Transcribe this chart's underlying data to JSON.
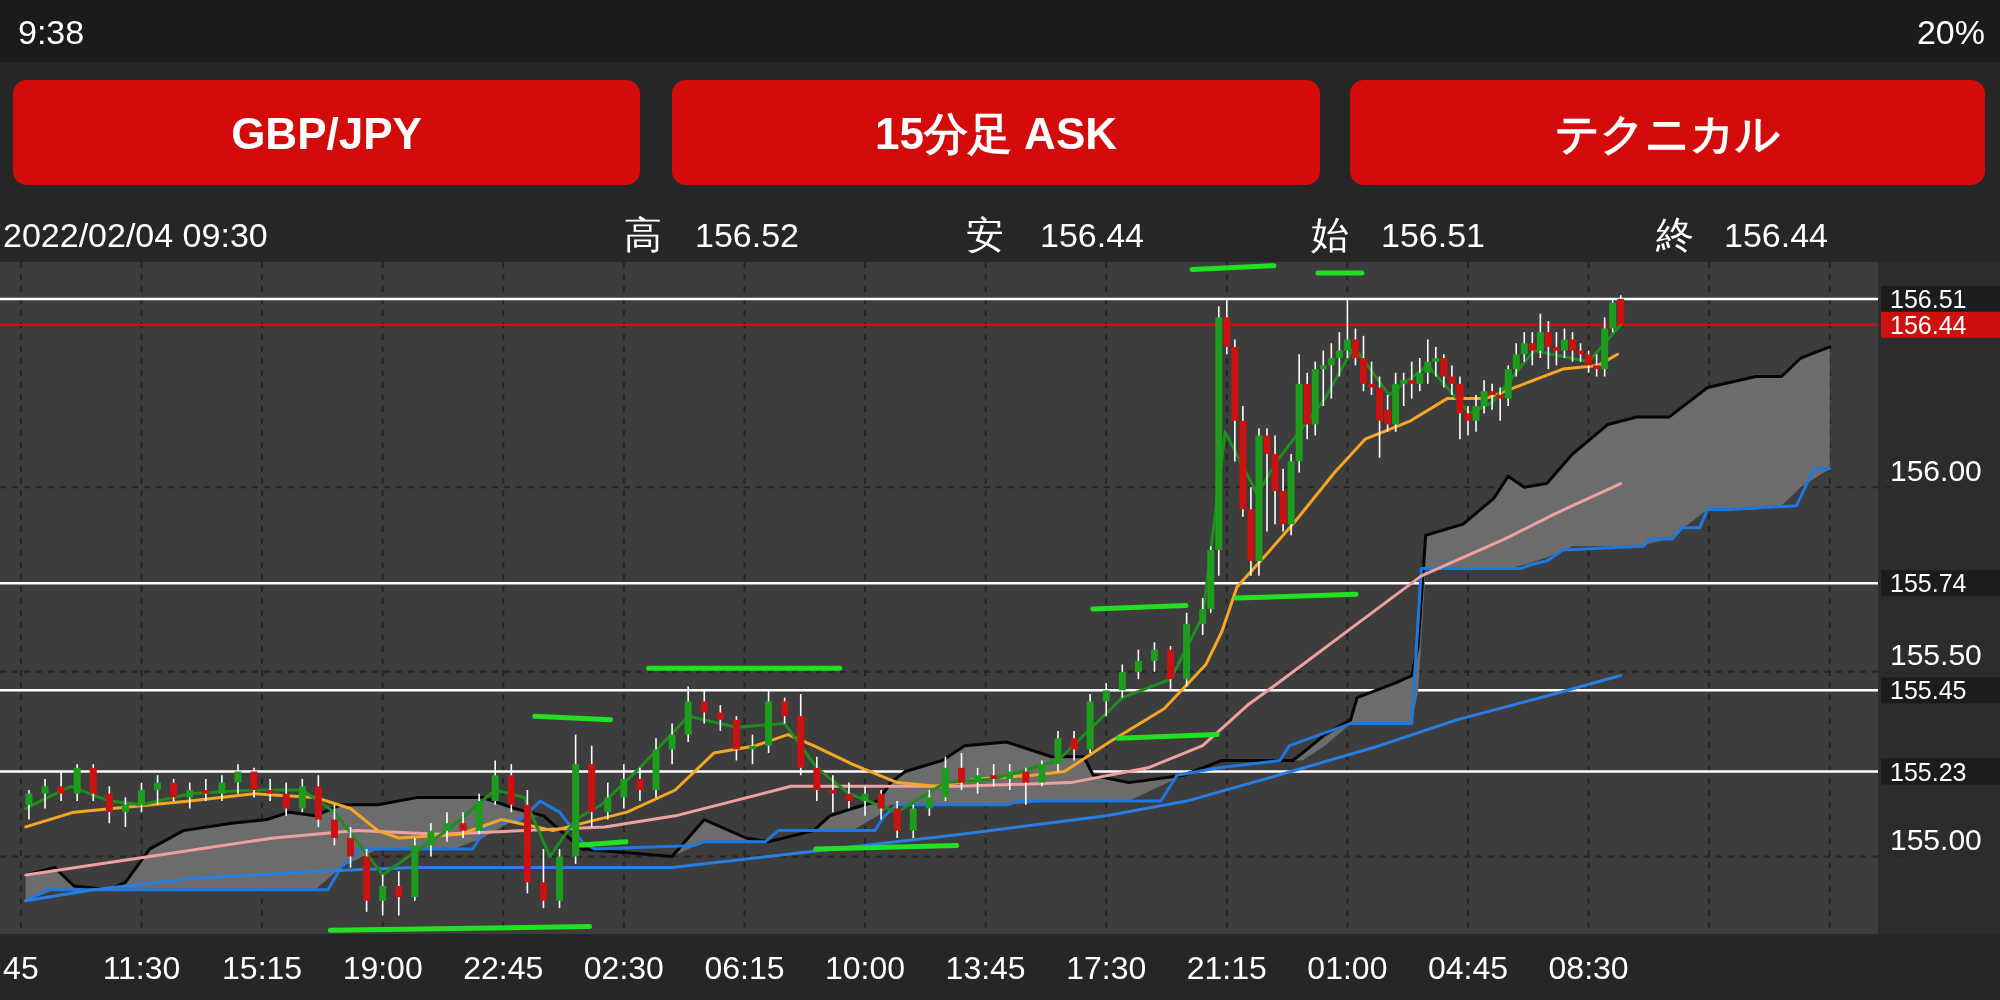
{
  "chart_data": {
    "type": "candlestick",
    "title": "GBP/JPY",
    "subtitle": "15分足 ASK",
    "annotations": [
      "9:38",
      "20%",
      "2022/02/04 09:30",
      "高",
      "156.52",
      "安",
      "156.44",
      "始",
      "156.51",
      "終",
      "156.44",
      "テクニカル"
    ],
    "xlim": [
      "2022-02-02T07:06",
      "2022-02-04T17:30"
    ],
    "ylim": [
      154.79,
      156.61
    ],
    "xticks": [
      {
        "value": "2022-02-02T07:45",
        "label": "45"
      },
      {
        "value": "2022-02-02T11:30",
        "label": "11:30"
      },
      {
        "value": "2022-02-02T15:15",
        "label": "15:15"
      },
      {
        "value": "2022-02-02T19:00",
        "label": "19:00"
      },
      {
        "value": "2022-02-02T22:45",
        "label": "22:45"
      },
      {
        "value": "2022-02-03T02:30",
        "label": "02:30"
      },
      {
        "value": "2022-02-03T06:15",
        "label": "06:15"
      },
      {
        "value": "2022-02-03T10:00",
        "label": "10:00"
      },
      {
        "value": "2022-02-03T13:45",
        "label": "13:45"
      },
      {
        "value": "2022-02-03T17:30",
        "label": "17:30"
      },
      {
        "value": "2022-02-03T21:15",
        "label": "21:15"
      },
      {
        "value": "2022-02-04T01:00",
        "label": "01:00"
      },
      {
        "value": "2022-02-04T04:45",
        "label": "04:45"
      },
      {
        "value": "2022-02-04T08:30",
        "label": "08:30"
      },
      {
        "value": "2022-02-04T12:15",
        "label": null
      },
      {
        "value": "2022-02-04T16:00",
        "label": null
      }
    ],
    "yticks": [
      {
        "value": 155,
        "label": "155.00"
      },
      {
        "value": 155.5,
        "label": "155.50"
      },
      {
        "value": 156,
        "label": "156.00"
      }
    ],
    "grid": true,
    "ref_lines": [
      {
        "axis": "y",
        "value": 156.51,
        "label": "156.51",
        "color": "#ffffff"
      },
      {
        "axis": "y",
        "value": 156.44,
        "label": "156.44",
        "color": "#cc1111"
      },
      {
        "axis": "y",
        "value": 155.74,
        "label": "155.74",
        "color": "#ffffff"
      },
      {
        "axis": "y",
        "value": 155.45,
        "label": "155.45",
        "color": "#ffffff"
      },
      {
        "axis": "y",
        "value": 155.23,
        "label": "155.23",
        "color": "#ffffff"
      }
    ],
    "series": [
      {
        "type": "line",
        "color": "#050505",
        "x": [
          "2022-02-02T07:54",
          "2022-02-02T08:48",
          "2022-02-02T09:24",
          "2022-02-02T10:30",
          "2022-02-02T11:00",
          "2022-02-02T11:45",
          "2022-02-02T12:48",
          "2022-02-02T14:18",
          "2022-02-02T15:24",
          "2022-02-02T16:06",
          "2022-02-02T16:54",
          "2022-02-02T17:42",
          "2022-02-02T18:51",
          "2022-02-02T20:06",
          "2022-02-02T21:12",
          "2022-02-02T22:06",
          "2022-02-02T23:06",
          "2022-02-03T00:00",
          "2022-02-03T01:12",
          "2022-02-03T04:00",
          "2022-02-03T05:00",
          "2022-02-03T06:18",
          "2022-02-03T07:00",
          "2022-02-03T08:24",
          "2022-02-03T08:54",
          "2022-02-03T09:36",
          "2022-02-03T10:24",
          "2022-02-03T10:48",
          "2022-02-03T11:15",
          "2022-02-03T12:24",
          "2022-02-03T13:06",
          "2022-02-03T14:24",
          "2022-02-03T15:48",
          "2022-02-03T16:48",
          "2022-02-03T17:06",
          "2022-02-03T18:12",
          "2022-02-03T19:54",
          "2022-02-03T21:06",
          "2022-02-03T23:18",
          "2022-02-03T23:36",
          "2022-02-04T00:18",
          "2022-02-04T01:06",
          "2022-02-04T01:18",
          "2022-02-04T02:30",
          "2022-02-04T03:00",
          "2022-02-04T03:12",
          "2022-02-04T03:26",
          "2022-02-04T04:36",
          "2022-02-04T05:33",
          "2022-02-04T06:00",
          "2022-02-04T06:30",
          "2022-02-04T07:12",
          "2022-02-04T08:00",
          "2022-02-04T09:06",
          "2022-02-04T10:00",
          "2022-02-04T11:00",
          "2022-02-04T12:12",
          "2022-02-04T13:42",
          "2022-02-04T14:30",
          "2022-02-04T15:06",
          "2022-02-04T16:00"
        ],
        "values": [
          154.95,
          154.97,
          154.92,
          154.91,
          154.93,
          155.02,
          155.07,
          155.09,
          155.1,
          155.12,
          155.11,
          155.14,
          155.14,
          155.16,
          155.16,
          155.16,
          155.13,
          155.11,
          155.02,
          155.0,
          155.1,
          155.05,
          155.04,
          155.07,
          155.11,
          155.13,
          155.15,
          155.2,
          155.23,
          155.26,
          155.3,
          155.31,
          155.27,
          155.27,
          155.22,
          155.2,
          155.22,
          155.26,
          155.26,
          155.28,
          155.33,
          155.37,
          155.43,
          155.47,
          155.49,
          155.57,
          155.87,
          155.9,
          155.97,
          156.03,
          156.0,
          156.01,
          156.09,
          156.17,
          156.19,
          156.19,
          156.27,
          156.3,
          156.3,
          156.35,
          156.38
        ],
        "upper": [
          154.95,
          154.97,
          154.92,
          154.91,
          154.93,
          155.02,
          155.07,
          155.09,
          155.1,
          155.12,
          155.11,
          155.14,
          155.14,
          155.16,
          155.16,
          155.16,
          155.13,
          155.11,
          155.02,
          155.0,
          155.1,
          155.05,
          155.04,
          155.07,
          155.11,
          155.13,
          155.15,
          155.2,
          155.23,
          155.26,
          155.3,
          155.31,
          155.27,
          155.27,
          155.22,
          155.2,
          155.22,
          155.26,
          155.26,
          155.28,
          155.33,
          155.37,
          155.43,
          155.47,
          155.49,
          155.57,
          155.87,
          155.9,
          155.97,
          156.03,
          156.0,
          156.01,
          156.09,
          156.17,
          156.19,
          156.19,
          156.27,
          156.3,
          156.3,
          156.35,
          156.38
        ],
        "lower": [
          154.88,
          154.91,
          154.91,
          154.91,
          154.91,
          154.91,
          154.91,
          154.91,
          154.91,
          154.91,
          154.91,
          154.97,
          155.02,
          155.02,
          155.02,
          155.05,
          155.1,
          155.11,
          155.02,
          155.0,
          155.04,
          155.04,
          155.04,
          155.07,
          155.07,
          155.07,
          155.11,
          155.14,
          155.14,
          155.14,
          155.14,
          155.14,
          155.15,
          155.15,
          155.15,
          155.15,
          155.22,
          155.26,
          155.26,
          155.26,
          155.3,
          155.36,
          155.36,
          155.36,
          155.36,
          155.45,
          155.78,
          155.78,
          155.78,
          155.78,
          155.79,
          155.81,
          155.84,
          155.84,
          155.84,
          155.86,
          155.94,
          155.94,
          155.95,
          156.0,
          156.05
        ]
      },
      {
        "type": "line",
        "color": "#1f78e0",
        "x": [
          "2022-02-02T07:54",
          "2022-02-02T08:36",
          "2022-02-02T17:18",
          "2022-02-02T17:42",
          "2022-02-02T18:18",
          "2022-02-02T21:48",
          "2022-02-02T22:18",
          "2022-02-02T23:18",
          "2022-02-02T23:54",
          "2022-02-03T00:30",
          "2022-02-03T01:12",
          "2022-02-03T01:36",
          "2022-02-03T04:42",
          "2022-02-03T05:00",
          "2022-02-03T06:54",
          "2022-02-03T07:18",
          "2022-02-03T10:18",
          "2022-02-03T10:36",
          "2022-02-03T11:00",
          "2022-02-03T14:24",
          "2022-02-03T14:48",
          "2022-02-03T19:12",
          "2022-02-03T19:42",
          "2022-02-03T21:00",
          "2022-02-03T22:54",
          "2022-02-03T23:12",
          "2022-02-04T01:06",
          "2022-02-04T03:00",
          "2022-02-04T03:18",
          "2022-02-04T06:24",
          "2022-02-04T06:42",
          "2022-02-04T07:12",
          "2022-02-04T07:42",
          "2022-02-04T10:12",
          "2022-02-04T10:24",
          "2022-02-04T11:06",
          "2022-02-04T11:24",
          "2022-02-04T11:57",
          "2022-02-04T12:12",
          "2022-02-04T12:54",
          "2022-02-04T14:58",
          "2022-02-04T15:30",
          "2022-02-04T16:00"
        ],
        "values": [
          154.88,
          154.91,
          154.91,
          154.97,
          155.02,
          155.02,
          155.09,
          155.1,
          155.15,
          155.12,
          155.04,
          155.02,
          155.03,
          155.04,
          155.04,
          155.07,
          155.07,
          155.11,
          155.14,
          155.14,
          155.15,
          155.15,
          155.22,
          155.24,
          155.26,
          155.3,
          155.36,
          155.36,
          155.78,
          155.78,
          155.79,
          155.8,
          155.83,
          155.84,
          155.86,
          155.86,
          155.89,
          155.89,
          155.94,
          155.94,
          155.95,
          156.05,
          156.05
        ]
      },
      {
        "type": "line",
        "color": "#2a7de1",
        "x": [
          "2022-02-02T07:54",
          "2022-02-02T10:00",
          "2022-02-02T13:00",
          "2022-02-02T17:00",
          "2022-02-02T20:00",
          "2022-02-03T00:00",
          "2022-02-03T04:00",
          "2022-02-03T08:00",
          "2022-02-03T13:00",
          "2022-02-03T17:30",
          "2022-02-03T20:00",
          "2022-02-03T23:15",
          "2022-02-04T02:00",
          "2022-02-04T04:24",
          "2022-02-04T07:00",
          "2022-02-04T09:30"
        ],
        "values": [
          154.88,
          154.91,
          154.94,
          154.96,
          154.97,
          154.97,
          154.97,
          155.01,
          155.06,
          155.11,
          155.15,
          155.23,
          155.3,
          155.37,
          155.43,
          155.49
        ]
      },
      {
        "type": "line",
        "color": "#f0a0a0",
        "x": [
          "2022-02-02T07:54",
          "2022-02-02T11:45",
          "2022-02-02T15:36",
          "2022-02-02T18:12",
          "2022-02-02T20:48",
          "2022-02-02T23:24",
          "2022-02-03T01:54",
          "2022-02-03T04:06",
          "2022-02-03T07:42",
          "2022-02-03T10:36",
          "2022-02-03T12:54",
          "2022-02-03T16:24",
          "2022-02-03T18:48",
          "2022-02-03T20:30",
          "2022-02-03T21:54",
          "2022-02-03T23:00",
          "2022-02-04T01:18",
          "2022-02-04T03:18",
          "2022-02-04T05:54",
          "2022-02-04T07:30",
          "2022-02-04T09:30"
        ],
        "values": [
          154.95,
          155.0,
          155.05,
          155.07,
          155.06,
          155.07,
          155.08,
          155.11,
          155.19,
          155.19,
          155.19,
          155.2,
          155.24,
          155.3,
          155.41,
          155.48,
          155.63,
          155.76,
          155.86,
          155.93,
          156.01
        ]
      },
      {
        "type": "line",
        "color": "#f5a623",
        "x": [
          "2022-02-02T07:54",
          "2022-02-02T09:24",
          "2022-02-02T13:00",
          "2022-02-02T15:00",
          "2022-02-02T16:54",
          "2022-02-02T18:00",
          "2022-02-02T18:51",
          "2022-02-02T19:30",
          "2022-02-02T21:24",
          "2022-02-02T22:42",
          "2022-02-03T00:18",
          "2022-02-03T02:36",
          "2022-02-03T04:06",
          "2022-02-03T05:18",
          "2022-02-03T06:36",
          "2022-02-03T07:36",
          "2022-02-03T08:24",
          "2022-02-03T09:36",
          "2022-02-03T11:00",
          "2022-02-03T12:12",
          "2022-02-03T13:30",
          "2022-02-03T15:12",
          "2022-02-03T16:12",
          "2022-02-03T17:36",
          "2022-02-03T19:18",
          "2022-02-03T20:36",
          "2022-02-03T21:06",
          "2022-02-03T21:34",
          "2022-02-03T22:30",
          "2022-02-03T23:24",
          "2022-02-04T00:36",
          "2022-02-04T01:33",
          "2022-02-04T02:58",
          "2022-02-04T04:06",
          "2022-02-04T05:18",
          "2022-02-04T06:30",
          "2022-02-04T07:42",
          "2022-02-04T08:48",
          "2022-02-04T09:24"
        ],
        "values": [
          155.08,
          155.12,
          155.15,
          155.17,
          155.16,
          155.13,
          155.07,
          155.05,
          155.06,
          155.1,
          155.07,
          155.12,
          155.18,
          155.28,
          155.3,
          155.33,
          155.3,
          155.25,
          155.2,
          155.19,
          155.21,
          155.22,
          155.23,
          155.31,
          155.4,
          155.52,
          155.61,
          155.73,
          155.82,
          155.91,
          156.04,
          156.13,
          156.18,
          156.24,
          156.24,
          156.28,
          156.32,
          156.33,
          156.36
        ]
      },
      {
        "type": "line",
        "color": "#1e8c1e",
        "x": [
          "2022-02-02T07:54",
          "2022-02-02T09:18",
          "2022-02-02T10:30",
          "2022-02-02T11:30",
          "2022-02-02T13:00",
          "2022-02-02T15:00",
          "2022-02-02T16:30",
          "2022-02-02T17:30",
          "2022-02-02T18:18",
          "2022-02-02T19:00",
          "2022-02-02T19:48",
          "2022-02-02T21:00",
          "2022-02-02T22:30",
          "2022-02-02T23:24",
          "2022-02-03T00:12",
          "2022-02-03T01:00",
          "2022-02-03T01:48",
          "2022-02-03T03:00",
          "2022-02-03T04:30",
          "2022-02-03T06:00",
          "2022-02-03T07:30",
          "2022-02-03T08:30",
          "2022-02-03T09:30",
          "2022-02-03T11:00",
          "2022-02-03T12:30",
          "2022-02-03T14:00",
          "2022-02-03T16:00",
          "2022-02-03T18:00",
          "2022-02-03T19:30",
          "2022-02-03T20:30",
          "2022-02-03T21:12",
          "2022-02-03T22:12",
          "2022-02-03T22:48",
          "2022-02-04T00:18",
          "2022-02-04T01:12",
          "2022-02-04T02:18",
          "2022-02-04T03:30",
          "2022-02-04T04:48",
          "2022-02-04T05:30",
          "2022-02-04T06:48",
          "2022-02-04T08:30",
          "2022-02-04T09:30"
        ],
        "values": [
          155.13,
          155.19,
          155.15,
          155.14,
          155.17,
          155.18,
          155.18,
          155.12,
          155.03,
          154.95,
          155.0,
          155.07,
          155.18,
          155.16,
          155.0,
          155.1,
          155.14,
          155.24,
          155.38,
          155.35,
          155.36,
          155.24,
          155.17,
          155.12,
          155.2,
          155.21,
          155.26,
          155.43,
          155.48,
          155.65,
          156.15,
          155.98,
          156.07,
          156.24,
          156.38,
          156.25,
          156.33,
          156.2,
          156.23,
          156.37,
          156.34,
          156.44
        ]
      },
      {
        "type": "line",
        "color": "#22e022",
        "x": [
          "2022-02-03T20:10",
          "2022-02-03T22:43"
        ],
        "values": [
          156.59,
          156.6
        ]
      },
      {
        "type": "line",
        "color": "#22e022",
        "x": [
          "2022-02-04T00:05",
          "2022-02-04T01:27"
        ],
        "values": [
          156.58,
          156.58
        ]
      },
      {
        "type": "line",
        "color": "#22e022",
        "x": [
          "2022-02-03T03:16",
          "2022-02-03T09:13"
        ],
        "values": [
          155.51,
          155.51
        ]
      },
      {
        "type": "line",
        "color": "#22e022",
        "x": [
          "2022-02-02T23:44",
          "2022-02-03T02:05"
        ],
        "values": [
          155.38,
          155.37
        ]
      },
      {
        "type": "line",
        "color": "#22e022",
        "x": [
          "2022-02-03T17:05",
          "2022-02-03T19:59"
        ],
        "values": [
          155.67,
          155.68
        ]
      },
      {
        "type": "line",
        "color": "#22e022",
        "x": [
          "2022-02-03T21:32",
          "2022-02-04T01:16"
        ],
        "values": [
          155.7,
          155.71
        ]
      },
      {
        "type": "line",
        "color": "#22e022",
        "x": [
          "2022-02-03T17:52",
          "2022-02-03T20:57"
        ],
        "values": [
          155.32,
          155.33
        ]
      },
      {
        "type": "line",
        "color": "#22e022",
        "x": [
          "2022-02-03T00:58",
          "2022-02-03T02:34"
        ],
        "values": [
          155.03,
          155.04
        ]
      },
      {
        "type": "line",
        "color": "#22e022",
        "x": [
          "2022-02-03T08:28",
          "2022-02-03T12:51"
        ],
        "values": [
          155.02,
          155.03
        ]
      },
      {
        "type": "line",
        "color": "#22e022",
        "x": [
          "2022-02-02T17:22",
          "2022-02-03T01:26"
        ],
        "values": [
          154.8,
          154.81
        ]
      },
      {
        "x": [
          "2022-02-02T08:00",
          "2022-02-02T08:30",
          "2022-02-02T09:00",
          "2022-02-02T09:30",
          "2022-02-02T10:00",
          "2022-02-02T10:30",
          "2022-02-02T11:00",
          "2022-02-02T11:30",
          "2022-02-02T12:00",
          "2022-02-02T12:30",
          "2022-02-02T13:00",
          "2022-02-02T13:30",
          "2022-02-02T14:00",
          "2022-02-02T14:30",
          "2022-02-02T15:00",
          "2022-02-02T15:30",
          "2022-02-02T16:00",
          "2022-02-02T16:30",
          "2022-02-02T17:00",
          "2022-02-02T17:30",
          "2022-02-02T18:00",
          "2022-02-02T18:30",
          "2022-02-02T19:00",
          "2022-02-02T19:30",
          "2022-02-02T20:00",
          "2022-02-02T20:30",
          "2022-02-02T21:00",
          "2022-02-02T21:30",
          "2022-02-02T22:00",
          "2022-02-02T22:30",
          "2022-02-02T23:00",
          "2022-02-02T23:30",
          "2022-02-03T00:00",
          "2022-02-03T00:30",
          "2022-02-03T01:00",
          "2022-02-03T01:30",
          "2022-02-03T02:00",
          "2022-02-03T02:30",
          "2022-02-03T03:00",
          "2022-02-03T03:30",
          "2022-02-03T04:00",
          "2022-02-03T04:30",
          "2022-02-03T05:00",
          "2022-02-03T05:30",
          "2022-02-03T06:00",
          "2022-02-03T06:30",
          "2022-02-03T07:00",
          "2022-02-03T07:30",
          "2022-02-03T08:00",
          "2022-02-03T08:30",
          "2022-02-03T09:00",
          "2022-02-03T09:30",
          "2022-02-03T10:00",
          "2022-02-03T10:30",
          "2022-02-03T11:00",
          "2022-02-03T11:30",
          "2022-02-03T12:00",
          "2022-02-03T12:30",
          "2022-02-03T13:00",
          "2022-02-03T13:30",
          "2022-02-03T14:00",
          "2022-02-03T14:30",
          "2022-02-03T15:00",
          "2022-02-03T15:30",
          "2022-02-03T16:00",
          "2022-02-03T16:30",
          "2022-02-03T17:00",
          "2022-02-03T17:30",
          "2022-02-03T18:00",
          "2022-02-03T18:30",
          "2022-02-03T19:00",
          "2022-02-03T19:30",
          "2022-02-03T20:00",
          "2022-02-03T20:30",
          "2022-02-03T20:45",
          "2022-02-03T21:00",
          "2022-02-03T21:15",
          "2022-02-03T21:30",
          "2022-02-03T21:45",
          "2022-02-03T22:00",
          "2022-02-03T22:15",
          "2022-02-03T22:30",
          "2022-02-03T22:45",
          "2022-02-03T23:00",
          "2022-02-03T23:15",
          "2022-02-03T23:30",
          "2022-02-03T23:45",
          "2022-02-04T00:00",
          "2022-02-04T00:15",
          "2022-02-04T00:30",
          "2022-02-04T00:45",
          "2022-02-04T01:00",
          "2022-02-04T01:15",
          "2022-02-04T01:30",
          "2022-02-04T01:45",
          "2022-02-04T02:00",
          "2022-02-04T02:15",
          "2022-02-04T02:30",
          "2022-02-04T02:45",
          "2022-02-04T03:00",
          "2022-02-04T03:15",
          "2022-02-04T03:30",
          "2022-02-04T03:45",
          "2022-02-04T04:00",
          "2022-02-04T04:15",
          "2022-02-04T04:30",
          "2022-02-04T04:45",
          "2022-02-04T05:00",
          "2022-02-04T05:15",
          "2022-02-04T05:30",
          "2022-02-04T05:45",
          "2022-02-04T06:00",
          "2022-02-04T06:15",
          "2022-02-04T06:30",
          "2022-02-04T06:45",
          "2022-02-04T07:00",
          "2022-02-04T07:15",
          "2022-02-04T07:30",
          "2022-02-04T07:45",
          "2022-02-04T08:00",
          "2022-02-04T08:15",
          "2022-02-04T08:30",
          "2022-02-04T08:45",
          "2022-02-04T09:00",
          "2022-02-04T09:15",
          "2022-02-04T09:30"
        ],
        "ohlc": [
          [
            155.14,
            155.18,
            155.1,
            155.17
          ],
          [
            155.17,
            155.21,
            155.13,
            155.19
          ],
          [
            155.19,
            155.23,
            155.15,
            155.17
          ],
          [
            155.17,
            155.25,
            155.15,
            155.24
          ],
          [
            155.24,
            155.25,
            155.15,
            155.17
          ],
          [
            155.17,
            155.19,
            155.09,
            155.12
          ],
          [
            155.12,
            155.16,
            155.08,
            155.14
          ],
          [
            155.14,
            155.2,
            155.12,
            155.18
          ],
          [
            155.18,
            155.22,
            155.14,
            155.2
          ],
          [
            155.2,
            155.21,
            155.15,
            155.16
          ],
          [
            155.16,
            155.2,
            155.13,
            155.18
          ],
          [
            155.18,
            155.21,
            155.15,
            155.17
          ],
          [
            155.17,
            155.22,
            155.15,
            155.2
          ],
          [
            155.2,
            155.25,
            155.17,
            155.23
          ],
          [
            155.23,
            155.24,
            155.16,
            155.18
          ],
          [
            155.18,
            155.21,
            155.15,
            155.17
          ],
          [
            155.17,
            155.2,
            155.11,
            155.13
          ],
          [
            155.13,
            155.21,
            155.12,
            155.19
          ],
          [
            155.19,
            155.22,
            155.08,
            155.1
          ],
          [
            155.1,
            155.14,
            155.03,
            155.05
          ],
          [
            155.05,
            155.08,
            154.97,
            155.0
          ],
          [
            155.0,
            155.02,
            154.85,
            154.88
          ],
          [
            154.88,
            154.95,
            154.84,
            154.92
          ],
          [
            154.92,
            154.96,
            154.84,
            154.89
          ],
          [
            154.89,
            155.05,
            154.88,
            155.03
          ],
          [
            155.03,
            155.09,
            155.0,
            155.07
          ],
          [
            155.07,
            155.12,
            155.04,
            155.09
          ],
          [
            155.09,
            155.12,
            155.05,
            155.07
          ],
          [
            155.07,
            155.17,
            155.06,
            155.15
          ],
          [
            155.15,
            155.26,
            155.14,
            155.22
          ],
          [
            155.22,
            155.25,
            155.12,
            155.14
          ],
          [
            155.14,
            155.18,
            154.9,
            154.93
          ],
          [
            154.93,
            155.02,
            154.86,
            154.88
          ],
          [
            154.88,
            155.02,
            154.86,
            155.0
          ],
          [
            155.0,
            155.33,
            154.98,
            155.25
          ],
          [
            155.25,
            155.3,
            155.08,
            155.12
          ],
          [
            155.12,
            155.2,
            155.1,
            155.16
          ],
          [
            155.16,
            155.25,
            155.13,
            155.21
          ],
          [
            155.21,
            155.24,
            155.15,
            155.18
          ],
          [
            155.18,
            155.32,
            155.16,
            155.29
          ],
          [
            155.29,
            155.36,
            155.25,
            155.33
          ],
          [
            155.33,
            155.46,
            155.31,
            155.42
          ],
          [
            155.42,
            155.45,
            155.36,
            155.39
          ],
          [
            155.39,
            155.41,
            155.34,
            155.37
          ],
          [
            155.37,
            155.38,
            155.26,
            155.29
          ],
          [
            155.29,
            155.33,
            155.25,
            155.3
          ],
          [
            155.3,
            155.45,
            155.28,
            155.42
          ],
          [
            155.42,
            155.43,
            155.36,
            155.38
          ],
          [
            155.38,
            155.44,
            155.22,
            155.24
          ],
          [
            155.24,
            155.27,
            155.15,
            155.18
          ],
          [
            155.18,
            155.22,
            155.12,
            155.17
          ],
          [
            155.17,
            155.2,
            155.13,
            155.15
          ],
          [
            155.15,
            155.19,
            155.11,
            155.17
          ],
          [
            155.17,
            155.18,
            155.1,
            155.13
          ],
          [
            155.13,
            155.15,
            155.05,
            155.07
          ],
          [
            155.07,
            155.14,
            155.05,
            155.13
          ],
          [
            155.13,
            155.18,
            155.11,
            155.16
          ],
          [
            155.16,
            155.27,
            155.15,
            155.24
          ],
          [
            155.24,
            155.28,
            155.18,
            155.2
          ],
          [
            155.2,
            155.24,
            155.17,
            155.22
          ],
          [
            155.22,
            155.25,
            155.19,
            155.21
          ],
          [
            155.21,
            155.25,
            155.18,
            155.23
          ],
          [
            155.23,
            155.24,
            155.14,
            155.2
          ],
          [
            155.2,
            155.26,
            155.19,
            155.25
          ],
          [
            155.25,
            155.34,
            155.23,
            155.32
          ],
          [
            155.32,
            155.34,
            155.26,
            155.29
          ],
          [
            155.29,
            155.44,
            155.28,
            155.42
          ],
          [
            155.42,
            155.47,
            155.38,
            155.45
          ],
          [
            155.45,
            155.52,
            155.43,
            155.5
          ],
          [
            155.5,
            155.56,
            155.48,
            155.53
          ],
          [
            155.53,
            155.58,
            155.5,
            155.56
          ],
          [
            155.56,
            155.57,
            155.45,
            155.48
          ],
          [
            155.48,
            155.66,
            155.46,
            155.63
          ],
          [
            155.63,
            155.7,
            155.6,
            155.67
          ],
          [
            155.67,
            155.84,
            155.66,
            155.83
          ],
          [
            155.83,
            156.49,
            155.76,
            156.46
          ],
          [
            156.46,
            156.51,
            156.36,
            156.38
          ],
          [
            156.38,
            156.4,
            156.07,
            156.18
          ],
          [
            156.18,
            156.22,
            155.92,
            155.94
          ],
          [
            155.94,
            156.0,
            155.76,
            155.8
          ],
          [
            155.8,
            156.16,
            155.76,
            156.14
          ],
          [
            156.14,
            156.16,
            155.88,
            156.09
          ],
          [
            156.09,
            156.14,
            155.9,
            155.99
          ],
          [
            155.99,
            156.05,
            155.88,
            155.9
          ],
          [
            155.9,
            156.09,
            155.87,
            156.07
          ],
          [
            156.07,
            156.36,
            156.04,
            156.28
          ],
          [
            156.28,
            156.31,
            156.13,
            156.17
          ],
          [
            156.17,
            156.34,
            156.14,
            156.32
          ],
          [
            156.32,
            156.37,
            156.22,
            156.33
          ],
          [
            156.33,
            156.39,
            156.24,
            156.35
          ],
          [
            156.35,
            156.42,
            156.3,
            156.37
          ],
          [
            156.37,
            156.51,
            156.35,
            156.4
          ],
          [
            156.4,
            156.43,
            156.33,
            156.35
          ],
          [
            156.35,
            156.41,
            156.26,
            156.28
          ],
          [
            156.28,
            156.34,
            156.25,
            156.27
          ],
          [
            156.27,
            156.3,
            156.08,
            156.18
          ],
          [
            156.21,
            156.25,
            156.15,
            156.17
          ],
          [
            156.17,
            156.31,
            156.15,
            156.28
          ],
          [
            156.28,
            156.31,
            156.22,
            156.29
          ],
          [
            156.29,
            156.34,
            156.24,
            156.28
          ],
          [
            156.28,
            156.35,
            156.26,
            156.31
          ],
          [
            156.31,
            156.4,
            156.28,
            156.34
          ],
          [
            156.34,
            156.38,
            156.3,
            156.35
          ],
          [
            156.35,
            156.36,
            156.27,
            156.3
          ],
          [
            156.3,
            156.33,
            156.25,
            156.28
          ],
          [
            156.28,
            156.3,
            156.13,
            156.2
          ],
          [
            156.2,
            156.22,
            156.14,
            156.18
          ],
          [
            156.18,
            156.25,
            156.15,
            156.22
          ],
          [
            156.22,
            156.29,
            156.2,
            156.26
          ],
          [
            156.26,
            156.28,
            156.21,
            156.25
          ],
          [
            156.25,
            156.27,
            156.18,
            156.24
          ],
          [
            156.24,
            156.33,
            156.22,
            156.32
          ],
          [
            156.32,
            156.39,
            156.3,
            156.36
          ],
          [
            156.36,
            156.42,
            156.34,
            156.39
          ],
          [
            156.39,
            156.42,
            156.33,
            156.37
          ],
          [
            156.37,
            156.47,
            156.35,
            156.42
          ],
          [
            156.42,
            156.45,
            156.32,
            156.38
          ],
          [
            156.38,
            156.42,
            156.33,
            156.37
          ],
          [
            156.37,
            156.43,
            156.35,
            156.4
          ],
          [
            156.4,
            156.42,
            156.34,
            156.37
          ],
          [
            156.37,
            156.39,
            156.34,
            156.36
          ],
          [
            156.36,
            156.37,
            156.31,
            156.33
          ],
          [
            156.33,
            156.36,
            156.3,
            156.32
          ],
          [
            156.32,
            156.46,
            156.3,
            156.43
          ],
          [
            156.43,
            156.51,
            156.42,
            156.5
          ],
          [
            156.51,
            156.52,
            156.44,
            156.44
          ]
        ],
        "colors": [
          "#1e9c1e",
          "#1e9c1e",
          "#cc1111",
          "#1e9c1e",
          "#cc1111",
          "#cc1111",
          "#1e9c1e",
          "#1e9c1e",
          "#1e9c1e",
          "#cc1111",
          "#1e9c1e",
          "#cc1111",
          "#1e9c1e",
          "#1e9c1e",
          "#cc1111",
          "#cc1111",
          "#cc1111",
          "#1e9c1e",
          "#cc1111",
          "#cc1111",
          "#cc1111",
          "#cc1111",
          "#1e9c1e",
          "#cc1111",
          "#1e9c1e",
          "#1e9c1e",
          "#1e9c1e",
          "#cc1111",
          "#1e9c1e",
          "#1e9c1e",
          "#cc1111",
          "#cc1111",
          "#cc1111",
          "#1e9c1e",
          "#1e9c1e",
          "#cc1111",
          "#1e9c1e",
          "#1e9c1e",
          "#cc1111",
          "#1e9c1e",
          "#1e9c1e",
          "#1e9c1e",
          "#cc1111",
          "#cc1111",
          "#cc1111",
          "#1e9c1e",
          "#1e9c1e",
          "#cc1111",
          "#cc1111",
          "#cc1111",
          "#cc1111",
          "#cc1111",
          "#1e9c1e",
          "#cc1111",
          "#cc1111",
          "#1e9c1e",
          "#1e9c1e",
          "#1e9c1e",
          "#cc1111",
          "#1e9c1e",
          "#cc1111",
          "#1e9c1e",
          "#cc1111",
          "#1e9c1e",
          "#1e9c1e",
          "#cc1111",
          "#1e9c1e",
          "#1e9c1e",
          "#1e9c1e",
          "#1e9c1e",
          "#1e9c1e",
          "#cc1111",
          "#1e9c1e",
          "#1e9c1e",
          "#1e9c1e",
          "#1e9c1e",
          "#cc1111",
          "#cc1111",
          "#cc1111",
          "#cc1111",
          "#1e9c1e",
          "#cc1111",
          "#cc1111",
          "#cc1111",
          "#1e9c1e",
          "#1e9c1e",
          "#cc1111",
          "#1e9c1e",
          "#1e9c1e",
          "#1e9c1e",
          "#1e9c1e",
          "#1e9c1e",
          "#cc1111",
          "#cc1111",
          "#cc1111",
          "#cc1111",
          "#cc1111",
          "#1e9c1e",
          "#1e9c1e",
          "#cc1111",
          "#1e9c1e",
          "#1e9c1e",
          "#1e9c1e",
          "#cc1111",
          "#cc1111",
          "#cc1111",
          "#cc1111",
          "#1e9c1e",
          "#1e9c1e",
          "#cc1111",
          "#cc1111",
          "#1e9c1e",
          "#1e9c1e",
          "#1e9c1e",
          "#cc1111",
          "#1e9c1e",
          "#cc1111",
          "#cc1111",
          "#1e9c1e",
          "#cc1111",
          "#cc1111",
          "#cc1111",
          "#cc1111",
          "#1e9c1e",
          "#1e9c1e",
          "#cc1111"
        ]
      }
    ]
  }
}
